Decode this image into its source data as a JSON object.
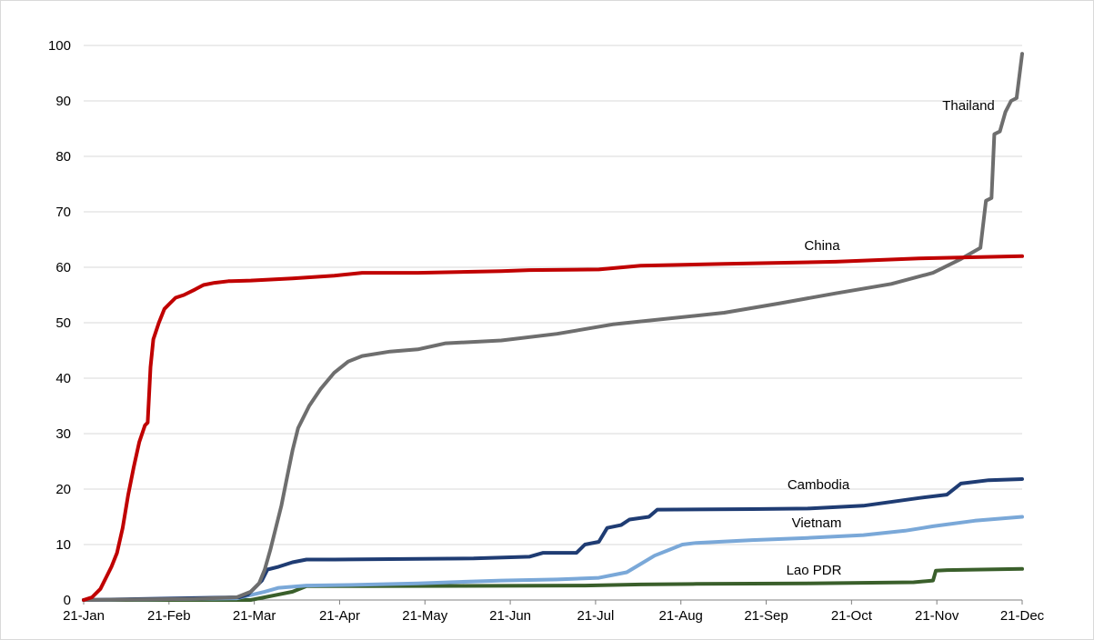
{
  "chart_data": {
    "type": "line",
    "title": "",
    "xlabel": "",
    "ylabel": "",
    "x_ticks": [
      "21-Jan",
      "21-Feb",
      "21-Mar",
      "21-Apr",
      "21-May",
      "21-Jun",
      "21-Jul",
      "21-Aug",
      "21-Sep",
      "21-Oct",
      "21-Nov",
      "21-Dec"
    ],
    "y_ticks": [
      0,
      10,
      20,
      30,
      40,
      50,
      60,
      70,
      80,
      90,
      100
    ],
    "ylim": [
      0,
      100
    ],
    "xlim_days": [
      0,
      337
    ],
    "grid": true,
    "legend": "inline labels",
    "series": [
      {
        "name": "China",
        "color": "#c00000",
        "points": [
          [
            0,
            0
          ],
          [
            3,
            0.5
          ],
          [
            6,
            2
          ],
          [
            8,
            4
          ],
          [
            10,
            6
          ],
          [
            12,
            8.5
          ],
          [
            14,
            13
          ],
          [
            16,
            19
          ],
          [
            18,
            24
          ],
          [
            20,
            28.5
          ],
          [
            22,
            31.5
          ],
          [
            23,
            32
          ],
          [
            24,
            42
          ],
          [
            25,
            47
          ],
          [
            27,
            50
          ],
          [
            29,
            52.5
          ],
          [
            31,
            53.5
          ],
          [
            33,
            54.5
          ],
          [
            36,
            55
          ],
          [
            40,
            56
          ],
          [
            43,
            56.8
          ],
          [
            47,
            57.2
          ],
          [
            52,
            57.5
          ],
          [
            60,
            57.6
          ],
          [
            75,
            58
          ],
          [
            90,
            58.5
          ],
          [
            100,
            59
          ],
          [
            120,
            59
          ],
          [
            150,
            59.3
          ],
          [
            160,
            59.5
          ],
          [
            185,
            59.6
          ],
          [
            200,
            60.3
          ],
          [
            230,
            60.6
          ],
          [
            270,
            61
          ],
          [
            300,
            61.6
          ],
          [
            337,
            62
          ]
        ]
      },
      {
        "name": "Thailand",
        "color": "#6e6e6e",
        "points": [
          [
            0,
            0
          ],
          [
            40,
            0.2
          ],
          [
            55,
            0.5
          ],
          [
            60,
            1.5
          ],
          [
            63,
            3
          ],
          [
            65,
            5.5
          ],
          [
            67,
            9
          ],
          [
            69,
            13
          ],
          [
            71,
            17
          ],
          [
            73,
            22
          ],
          [
            75,
            27
          ],
          [
            77,
            31
          ],
          [
            79,
            33
          ],
          [
            81,
            35
          ],
          [
            85,
            38
          ],
          [
            90,
            41
          ],
          [
            95,
            43
          ],
          [
            100,
            44
          ],
          [
            110,
            44.8
          ],
          [
            120,
            45.2
          ],
          [
            130,
            46.3
          ],
          [
            150,
            46.8
          ],
          [
            170,
            48
          ],
          [
            190,
            49.7
          ],
          [
            230,
            51.8
          ],
          [
            250,
            53.5
          ],
          [
            270,
            55.3
          ],
          [
            290,
            57
          ],
          [
            305,
            59
          ],
          [
            315,
            61.5
          ],
          [
            322,
            63.5
          ],
          [
            324,
            72
          ],
          [
            326,
            72.5
          ],
          [
            327,
            84
          ],
          [
            329,
            84.5
          ],
          [
            331,
            88
          ],
          [
            333,
            90
          ],
          [
            335,
            90.5
          ],
          [
            337,
            98.5
          ]
        ]
      },
      {
        "name": "Cambodia",
        "color": "#1f3c73",
        "points": [
          [
            0,
            0
          ],
          [
            56,
            0.5
          ],
          [
            59,
            1
          ],
          [
            62,
            2.5
          ],
          [
            64,
            3.5
          ],
          [
            66,
            5.5
          ],
          [
            70,
            6
          ],
          [
            75,
            6.8
          ],
          [
            80,
            7.3
          ],
          [
            90,
            7.3
          ],
          [
            140,
            7.5
          ],
          [
            160,
            7.8
          ],
          [
            165,
            8.5
          ],
          [
            177,
            8.5
          ],
          [
            180,
            10
          ],
          [
            185,
            10.5
          ],
          [
            188,
            13
          ],
          [
            193,
            13.5
          ],
          [
            196,
            14.5
          ],
          [
            203,
            15
          ],
          [
            206,
            16.3
          ],
          [
            240,
            16.4
          ],
          [
            260,
            16.5
          ],
          [
            280,
            17
          ],
          [
            300,
            18.4
          ],
          [
            310,
            19
          ],
          [
            315,
            21
          ],
          [
            325,
            21.6
          ],
          [
            337,
            21.8
          ]
        ]
      },
      {
        "name": "Vietnam",
        "color": "#7aa8d8",
        "points": [
          [
            0,
            0
          ],
          [
            55,
            0.3
          ],
          [
            65,
            1.5
          ],
          [
            70,
            2.2
          ],
          [
            80,
            2.6
          ],
          [
            95,
            2.7
          ],
          [
            120,
            3
          ],
          [
            150,
            3.5
          ],
          [
            170,
            3.7
          ],
          [
            185,
            4
          ],
          [
            195,
            5
          ],
          [
            200,
            6.5
          ],
          [
            205,
            8
          ],
          [
            210,
            9
          ],
          [
            215,
            10
          ],
          [
            220,
            10.3
          ],
          [
            240,
            10.8
          ],
          [
            260,
            11.2
          ],
          [
            280,
            11.7
          ],
          [
            295,
            12.5
          ],
          [
            305,
            13.3
          ],
          [
            320,
            14.3
          ],
          [
            337,
            15
          ]
        ]
      },
      {
        "name": "Lao PDR",
        "color": "#3a5f2b",
        "points": [
          [
            0,
            0
          ],
          [
            60,
            0
          ],
          [
            65,
            0.5
          ],
          [
            70,
            1
          ],
          [
            75,
            1.5
          ],
          [
            80,
            2.5
          ],
          [
            100,
            2.5
          ],
          [
            180,
            2.6
          ],
          [
            200,
            2.8
          ],
          [
            220,
            2.9
          ],
          [
            260,
            3
          ],
          [
            298,
            3.2
          ],
          [
            305,
            3.5
          ],
          [
            306,
            5.3
          ],
          [
            310,
            5.4
          ],
          [
            337,
            5.6
          ]
        ]
      }
    ]
  }
}
